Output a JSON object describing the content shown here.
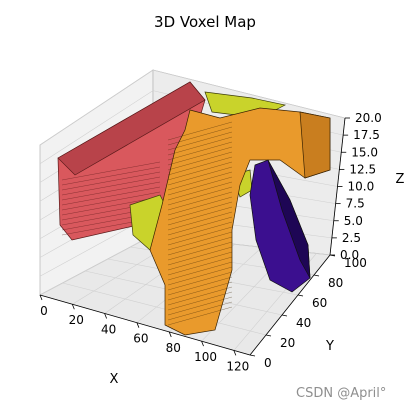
{
  "chart_data": {
    "type": "voxel",
    "title": "3D Voxel Map",
    "xlabel": "X",
    "ylabel": "Y",
    "zlabel": "Z",
    "x_ticks": [
      0,
      20,
      40,
      60,
      80,
      100,
      120
    ],
    "y_ticks": [
      0,
      20,
      40,
      60,
      80,
      100
    ],
    "z_ticks": [
      "0.0",
      "2.5",
      "5.0",
      "7.5",
      "10.0",
      "12.5",
      "15.0",
      "17.5",
      "20.0"
    ],
    "xlim": [
      0,
      130
    ],
    "ylim": [
      0,
      100
    ],
    "zlim": [
      0,
      20
    ],
    "grid": true,
    "voxel_groups": [
      {
        "color": "#d9585d",
        "description": "red block"
      },
      {
        "color": "#e99a2c",
        "description": "orange block"
      },
      {
        "color": "#c9d32b",
        "description": "yellow-green block"
      },
      {
        "color": "#3b0f8f",
        "description": "purple block"
      }
    ]
  },
  "watermark": "CSDN @April°"
}
